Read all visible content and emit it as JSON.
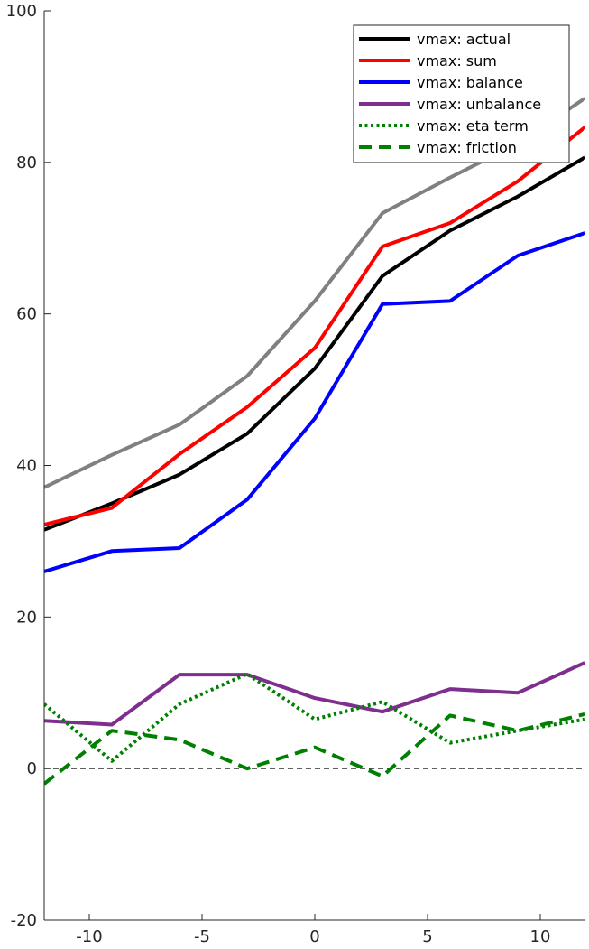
{
  "chart_data": {
    "type": "line",
    "title": "",
    "xlabel": "",
    "ylabel": "",
    "xlim": [
      -12,
      12
    ],
    "ylim": [
      -20,
      100
    ],
    "grid": false,
    "legend_position": "top-right",
    "x": [
      -12,
      -9,
      -6,
      -3,
      0,
      3,
      6,
      9,
      12
    ],
    "xticks": [
      -10,
      -5,
      0,
      5,
      10
    ],
    "xtick_labels": [
      "-10",
      "-5",
      "0",
      "5",
      "10"
    ],
    "yticks": [
      -20,
      0,
      20,
      40,
      60,
      80,
      100
    ],
    "ytick_labels": [
      "-20",
      "0",
      "20",
      "40",
      "60",
      "80",
      "100"
    ],
    "zero_line": {
      "y": 0,
      "style": "dashed",
      "color": "#000000"
    },
    "series": [
      {
        "name": "vmax: actual",
        "color": "#000000",
        "style": "solid",
        "in_legend": true,
        "values": [
          31.5,
          35.0,
          38.8,
          44.2,
          52.8,
          65.0,
          71.0,
          75.5,
          80.7
        ]
      },
      {
        "name": "vmax: sum",
        "color": "#ff0000",
        "style": "solid",
        "in_legend": true,
        "values": [
          32.2,
          34.4,
          41.5,
          47.7,
          55.5,
          68.9,
          72.0,
          77.5,
          84.7
        ]
      },
      {
        "name": "vmax: balance",
        "color": "#0000ff",
        "style": "solid",
        "in_legend": true,
        "values": [
          26.0,
          28.7,
          29.1,
          35.5,
          46.2,
          61.3,
          61.7,
          67.7,
          70.7
        ]
      },
      {
        "name": "vmax: unbalance",
        "color": "#7e2f8e",
        "style": "solid",
        "in_legend": true,
        "values": [
          6.3,
          5.8,
          12.4,
          12.4,
          9.3,
          7.5,
          10.5,
          10.0,
          14.0
        ]
      },
      {
        "name": "vmax: eta term",
        "color": "#008000",
        "style": "dotted",
        "in_legend": true,
        "values": [
          8.5,
          1.0,
          8.5,
          12.5,
          6.5,
          8.8,
          3.4,
          5.0,
          6.5
        ]
      },
      {
        "name": "vmax: friction",
        "color": "#008000",
        "style": "dashed",
        "in_legend": true,
        "values": [
          -2.0,
          5.0,
          3.8,
          0.0,
          2.8,
          -1.0,
          7.0,
          5.0,
          7.2
        ]
      },
      {
        "name": "",
        "color": "#808080",
        "style": "solid",
        "in_legend": false,
        "values": [
          37.1,
          41.4,
          45.4,
          51.8,
          61.7,
          73.3,
          78.0,
          82.5,
          88.5
        ]
      }
    ]
  }
}
